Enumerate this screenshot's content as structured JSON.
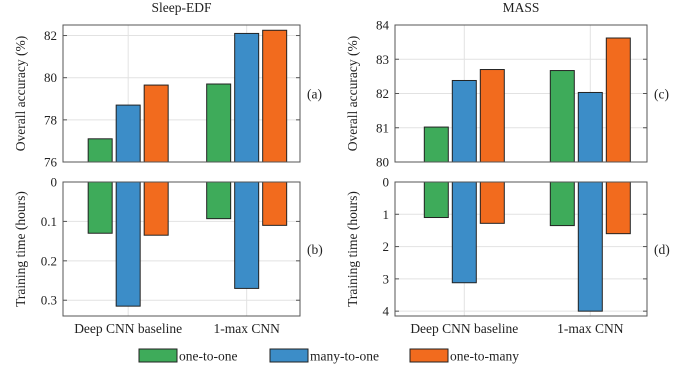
{
  "chart_data": {
    "colors": {
      "one-to-one": "#3eab5a",
      "many-to-one": "#3c8dc8",
      "one-to-many": "#f26b1e"
    },
    "legend": {
      "placement": "bottom",
      "entries": [
        "one-to-one",
        "many-to-one",
        "one-to-many"
      ]
    },
    "grid": true,
    "panels": [
      {
        "type": "bar",
        "title": "Sleep-EDF",
        "ylabel": "Overall accuracy (%)",
        "panel_label": "(a)",
        "categories": [
          "Deep CNN baseline",
          "1-max CNN"
        ],
        "ylim": [
          76,
          82.5
        ],
        "yticks": [
          76,
          78,
          80,
          82
        ],
        "ytick_labels": [
          "76",
          "78",
          "80",
          "82"
        ],
        "series": [
          {
            "name": "one-to-one",
            "values": [
              77.1,
              79.7
            ]
          },
          {
            "name": "many-to-one",
            "values": [
              78.7,
              82.1
            ]
          },
          {
            "name": "one-to-many",
            "values": [
              79.65,
              82.25
            ]
          }
        ]
      },
      {
        "type": "bar",
        "title": "MASS",
        "ylabel": "Overall accuracy (%)",
        "panel_label": "(c)",
        "categories": [
          "Deep CNN baseline",
          "1-max CNN"
        ],
        "ylim": [
          80,
          84
        ],
        "yticks": [
          80,
          81,
          82,
          83,
          84
        ],
        "ytick_labels": [
          "80",
          "81",
          "82",
          "83",
          "84"
        ],
        "series": [
          {
            "name": "one-to-one",
            "values": [
              81.02,
              82.67
            ]
          },
          {
            "name": "many-to-one",
            "values": [
              82.38,
              82.03
            ]
          },
          {
            "name": "one-to-many",
            "values": [
              82.7,
              83.62
            ]
          }
        ]
      },
      {
        "type": "bar",
        "ylabel": "Training time (hours)",
        "panel_label": "(b)",
        "categories": [
          "Deep CNN baseline",
          "1-max CNN"
        ],
        "reversed": true,
        "ylim": [
          0,
          0.34
        ],
        "yticks": [
          0,
          0.1,
          0.2,
          0.3
        ],
        "ytick_labels": [
          "0",
          "0.1",
          "0.2",
          "0.3"
        ],
        "category_labels_shown": true,
        "series": [
          {
            "name": "one-to-one",
            "values": [
              0.13,
              0.093
            ]
          },
          {
            "name": "many-to-one",
            "values": [
              0.315,
              0.27
            ]
          },
          {
            "name": "one-to-many",
            "values": [
              0.135,
              0.11
            ]
          }
        ]
      },
      {
        "type": "bar",
        "ylabel": "Training time (hours)",
        "panel_label": "(d)",
        "categories": [
          "Deep CNN baseline",
          "1-max CNN"
        ],
        "reversed": true,
        "ylim": [
          0,
          4.15
        ],
        "yticks": [
          0,
          1,
          2,
          3,
          4
        ],
        "ytick_labels": [
          "0",
          "1",
          "2",
          "3",
          "4"
        ],
        "category_labels_shown": true,
        "series": [
          {
            "name": "one-to-one",
            "values": [
              1.1,
              1.35
            ]
          },
          {
            "name": "many-to-one",
            "values": [
              3.12,
              4.0
            ]
          },
          {
            "name": "one-to-many",
            "values": [
              1.28,
              1.6
            ]
          }
        ]
      }
    ]
  }
}
